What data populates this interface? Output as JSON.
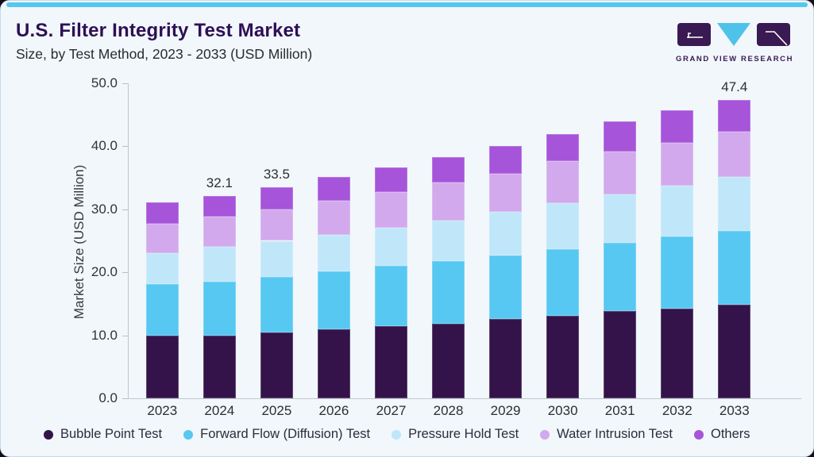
{
  "header": {
    "title": "U.S. Filter Integrity Test Market",
    "subtitle": "Size, by Test Method, 2023 - 2033 (USD Million)"
  },
  "logo": {
    "text": "GRAND VIEW RESEARCH"
  },
  "colors": {
    "accent_topbar": "#58c6ee",
    "card_background": "#f1f7fb",
    "card_border": "#c7dbe8",
    "title_text": "#2e0f55",
    "body_text": "#2e2e2e",
    "axis_line": "#c0c7cd",
    "logo_purple": "#3a1a52",
    "logo_cyan": "#4fc2ea"
  },
  "chart_data": {
    "type": "bar",
    "stacked": true,
    "title": "U.S. Filter Integrity Test Market Size, by Test Method, 2023 - 2033 (USD Million)",
    "xlabel": "",
    "ylabel": "Market Size (USD Million)",
    "ylim": [
      0,
      50
    ],
    "yticks": [
      0,
      10,
      20,
      30,
      40,
      50
    ],
    "ytick_labels": [
      "0.0",
      "10.0",
      "20.0",
      "30.0",
      "40.0",
      "50.0"
    ],
    "grid": false,
    "legend_position": "bottom",
    "categories": [
      "2023",
      "2024",
      "2025",
      "2026",
      "2027",
      "2028",
      "2029",
      "2030",
      "2031",
      "2032",
      "2033"
    ],
    "series": [
      {
        "name": "Bubble Point Test",
        "color": "#331349",
        "values": [
          9.9,
          10.0,
          10.4,
          11.0,
          11.5,
          11.9,
          12.6,
          13.1,
          13.8,
          14.2,
          14.8
        ]
      },
      {
        "name": "Forward Flow (Diffusion) Test",
        "color": "#56c8f2",
        "values": [
          8.2,
          8.5,
          8.9,
          9.1,
          9.5,
          9.9,
          10.1,
          10.6,
          10.9,
          11.5,
          11.8
        ]
      },
      {
        "name": "Pressure Hold Test",
        "color": "#c0e6f9",
        "values": [
          4.9,
          5.5,
          5.7,
          5.9,
          6.1,
          6.4,
          6.9,
          7.3,
          7.7,
          8.0,
          8.5
        ]
      },
      {
        "name": "Water Intrusion Test",
        "color": "#d2a9ec",
        "values": [
          4.7,
          4.8,
          5.0,
          5.4,
          5.7,
          6.0,
          6.0,
          6.6,
          6.8,
          6.8,
          7.2
        ]
      },
      {
        "name": "Others",
        "color": "#a654d9",
        "values": [
          3.4,
          3.3,
          3.5,
          3.7,
          3.8,
          4.1,
          4.5,
          4.4,
          4.7,
          5.2,
          5.1
        ]
      }
    ],
    "bar_labels": {
      "2024": "32.1",
      "2025": "33.5",
      "2033": "47.4"
    }
  }
}
